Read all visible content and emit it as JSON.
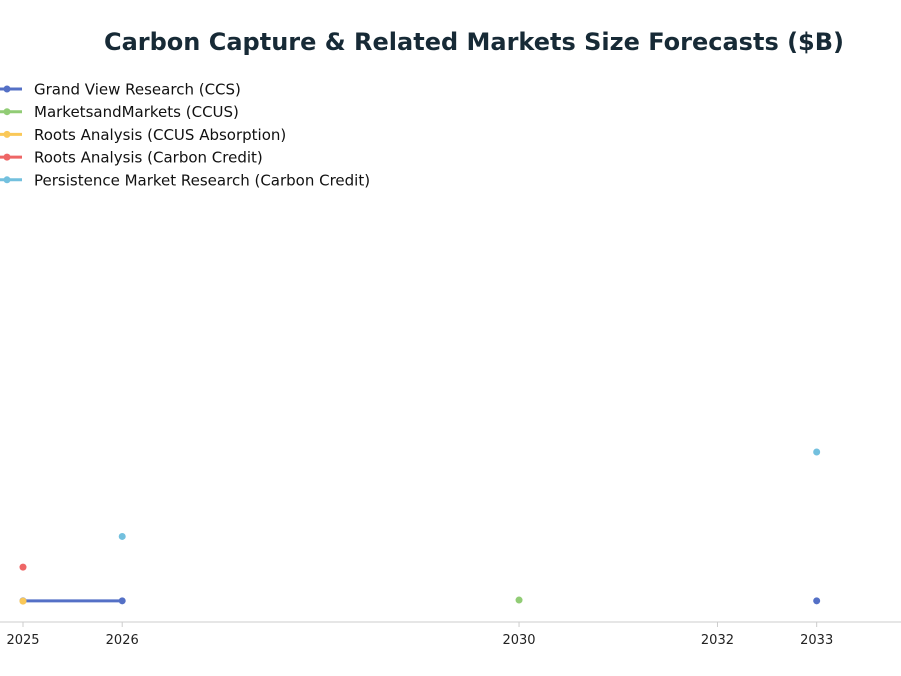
{
  "chart_data": {
    "type": "line",
    "title": "Carbon Capture & Related Markets Size Forecasts ($B)",
    "xlabel": "",
    "ylabel": "",
    "x_ticks": [
      "2025",
      "2026",
      "2030",
      "2032",
      "2033"
    ],
    "xlim": [
      2025,
      2033.85
    ],
    "ylim": [
      -15,
      470
    ],
    "y_axis_visible": false,
    "grid": false,
    "legend_position": "top-left",
    "series": [
      {
        "name": "Grand View Research (CCS)",
        "color": "#5470c6",
        "points": [
          {
            "x": "2025",
            "y": 4.3
          },
          {
            "x": "2026",
            "y": 4.3
          },
          {
            "x": "2033",
            "y": 4.3
          }
        ]
      },
      {
        "name": "MarketsandMarkets (CCUS)",
        "color": "#91cc75",
        "points": [
          {
            "x": "2030",
            "y": 5
          }
        ]
      },
      {
        "name": "Roots Analysis (CCUS Absorption)",
        "color": "#fac858",
        "points": [
          {
            "x": "2025",
            "y": 4.0
          }
        ]
      },
      {
        "name": "Roots Analysis (Carbon Credit)",
        "color": "#ee6666",
        "points": [
          {
            "x": "2025",
            "y": 35
          }
        ]
      },
      {
        "name": "Persistence Market Research (Carbon Credit)",
        "color": "#73c0de",
        "points": [
          {
            "x": "2026",
            "y": 63
          },
          {
            "x": "2033",
            "y": 140
          }
        ]
      }
    ]
  }
}
